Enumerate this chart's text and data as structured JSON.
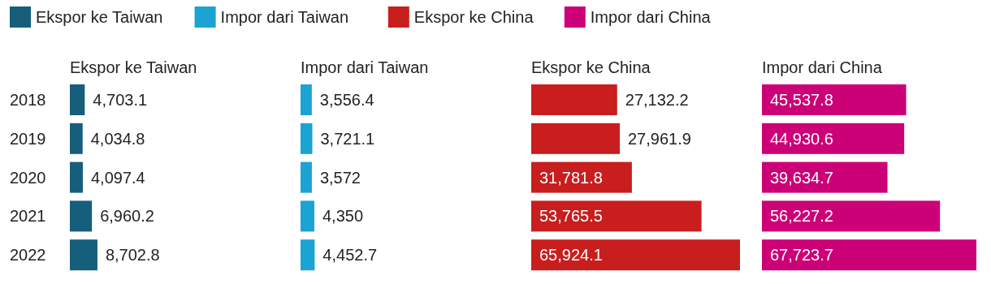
{
  "chart_data": [
    {
      "type": "bar",
      "orientation": "horizontal",
      "title": "Ekspor ke Taiwan",
      "categories": [
        "2018",
        "2019",
        "2020",
        "2021",
        "2022"
      ],
      "legend": "top",
      "series": [
        {
          "name": "Ekspor ke Taiwan",
          "color": "#155f7c",
          "values": [
            4703.1,
            4034.8,
            4097.4,
            6960.2,
            8702.8
          ],
          "value_labels": [
            "4,703.1",
            "4,034.8",
            "4,097.4",
            "6,960.2",
            "8,702.8"
          ]
        }
      ]
    },
    {
      "type": "bar",
      "orientation": "horizontal",
      "title": "Impor dari Taiwan",
      "categories": [
        "2018",
        "2019",
        "2020",
        "2021",
        "2022"
      ],
      "tick_labels": false,
      "legend": "top left",
      "series": [
        {
          "name": "Impor dari Taiwan",
          "color": "#1aa3d3",
          "values": [
            3556.4,
            3721.1,
            3572,
            4350,
            4452.7
          ],
          "value_labels": [
            "3,556.4",
            "3,721.1",
            "3,572",
            "4,350",
            "4,452.7"
          ]
        }
      ]
    },
    {
      "type": "bar",
      "orientation": "horizontal",
      "title": "Ekspor ke China",
      "categories": [
        "2018",
        "2019",
        "2020",
        "2021",
        "2022"
      ],
      "tick_labels": false,
      "legend": "top left",
      "series": [
        {
          "name": "Ekspor ke China",
          "color": "#c81e1e",
          "values": [
            27132.2,
            27961.9,
            31781.8,
            53765.5,
            65924.1
          ],
          "value_labels": [
            "27,132.2",
            "27,961.9",
            "31,781.8",
            "53,765.5",
            "65,924.1"
          ]
        }
      ]
    },
    {
      "type": "bar",
      "orientation": "horizontal",
      "title": "Impor dari China",
      "categories": [
        "2018",
        "2019",
        "2020",
        "2021",
        "2022"
      ],
      "tick_labels": false,
      "legend": "top left",
      "series": [
        {
          "name": "Impor dari China",
          "color": "#cc0077",
          "values": [
            45537.8,
            44930.6,
            39634.7,
            56227.2,
            67723.7
          ],
          "value_labels": [
            "45,537.8",
            "44,930.6",
            "39,634.7",
            "56,227.2",
            "67,723.7"
          ]
        }
      ]
    }
  ]
}
